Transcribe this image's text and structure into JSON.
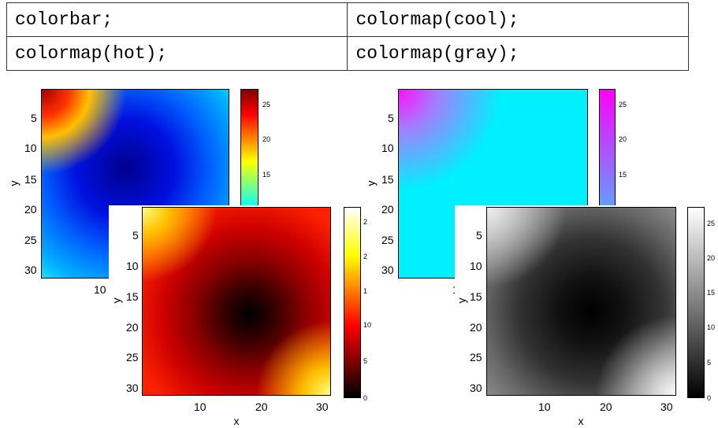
{
  "table": {
    "rows": [
      [
        "colorbar;",
        "colormap(cool);"
      ],
      [
        "colormap(hot);",
        "colormap(gray);"
      ]
    ]
  },
  "figures": [
    {
      "yticks": [
        5,
        10,
        15,
        20,
        25,
        30
      ],
      "xticks": [
        10
      ],
      "ylabel": "y",
      "colorbar_ticks": [
        25,
        20,
        15
      ]
    },
    {
      "yticks": [
        5,
        10,
        15,
        20,
        25,
        30
      ],
      "xticks": [
        10,
        20,
        30
      ],
      "xlabel": "x",
      "ylabel": "y",
      "colorbar_ticks": [
        "2",
        "2",
        "1",
        10,
        5,
        0
      ]
    },
    {
      "yticks": [
        5,
        10,
        15,
        20,
        25,
        30
      ],
      "xticks": [
        "1"
      ],
      "ylabel": "y",
      "colorbar_ticks": [
        25,
        20,
        15
      ]
    },
    {
      "yticks": [
        5,
        10,
        15,
        20,
        25,
        30
      ],
      "xticks": [
        10,
        20,
        30
      ],
      "xlabel": "x",
      "ylabel": "y",
      "colorbar_ticks": [
        25,
        20,
        15,
        10,
        5,
        0
      ]
    }
  ]
}
